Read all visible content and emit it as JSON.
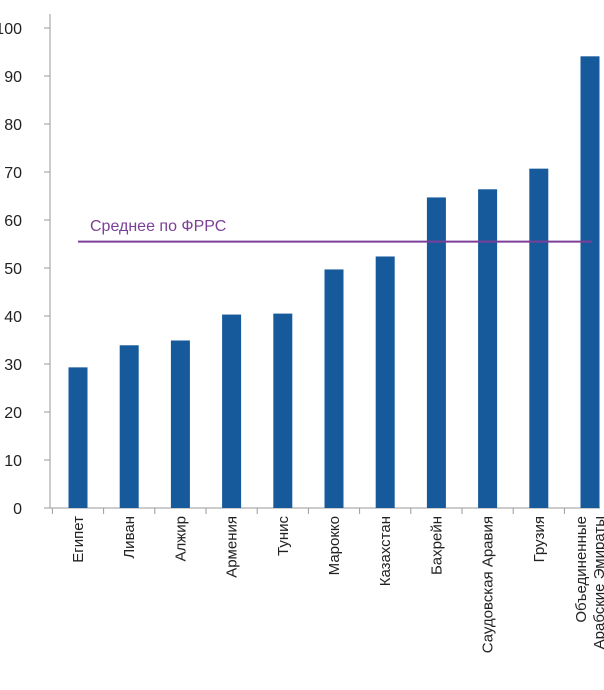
{
  "chart_data": {
    "type": "bar",
    "title": "",
    "xlabel": "",
    "ylabel": "",
    "ylim": [
      0,
      100
    ],
    "yticks": [
      0,
      10,
      20,
      30,
      40,
      50,
      60,
      70,
      80,
      90,
      100
    ],
    "grid": false,
    "categories": [
      "Египет",
      "Ливан",
      "Алжир",
      "Армения",
      "Тунис",
      "Марокко",
      "Казахстан",
      "Бахрейн",
      "Саудовская Аравия",
      "Грузия",
      "Объединенные Арабские Эмираты"
    ],
    "category_lines": [
      [
        "Египет"
      ],
      [
        "Ливан"
      ],
      [
        "Алжир"
      ],
      [
        "Армения"
      ],
      [
        "Тунис"
      ],
      [
        "Марокко"
      ],
      [
        "Казахстан"
      ],
      [
        "Бахрейн"
      ],
      [
        "Саудовская Аравия"
      ],
      [
        "Грузия"
      ],
      [
        "Объединенные",
        "Арабские Эмираты"
      ]
    ],
    "series": [
      {
        "values": [
          29.3,
          33.9,
          34.9,
          40.3,
          40.5,
          49.7,
          52.4,
          64.7,
          66.4,
          70.7,
          94.1
        ],
        "color": "#165a9c"
      }
    ],
    "reference_line": {
      "label": "Среднее по ФРРС",
      "value": 55.5,
      "color": "#7b3f98"
    }
  }
}
